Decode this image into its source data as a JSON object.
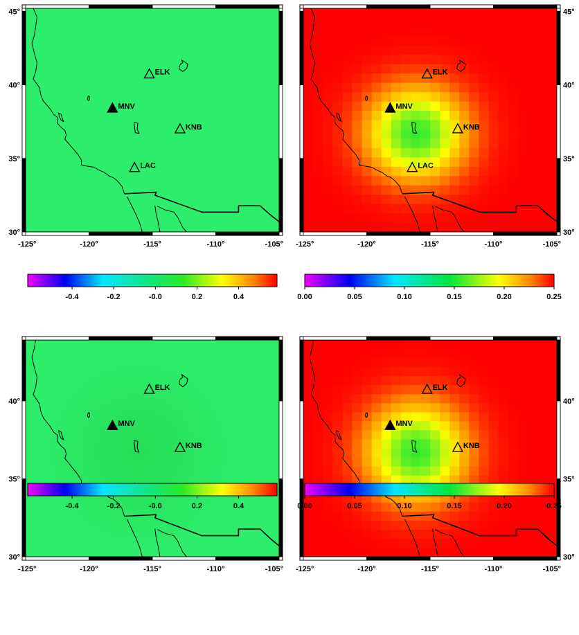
{
  "maps": [
    {
      "id": "top-left",
      "field": "uniform",
      "colorbar_index": 0,
      "lon_ticks": [
        "-125°",
        "-120°",
        "-115°",
        "-110°",
        "-105°"
      ],
      "left_lat_ticks": [
        "45°",
        "40°",
        "35°",
        "30°"
      ],
      "right_lat_ticks": []
    },
    {
      "id": "top-right",
      "field": "radial",
      "colorbar_index": 1,
      "lon_ticks": [
        "-125°",
        "-120°",
        "-115°",
        "-110°",
        "-105°"
      ],
      "left_lat_ticks": [],
      "right_lat_ticks": [
        "45°",
        "40°",
        "35°",
        "30°"
      ]
    },
    {
      "id": "bottom-left",
      "field": "soft",
      "colorbar_index": 2,
      "lon_ticks": [
        "-125°",
        "-120°",
        "-115°",
        "-110°",
        "-105°"
      ],
      "left_lat_ticks": [
        "40°",
        "35°",
        "30°"
      ],
      "right_lat_ticks": []
    },
    {
      "id": "bottom-right",
      "field": "radial",
      "colorbar_index": 3,
      "lon_ticks": [
        "-125°",
        "-120°",
        "-115°",
        "-110°",
        "-105°"
      ],
      "left_lat_ticks": [],
      "right_lat_ticks": [
        "40°",
        "35°",
        "30°"
      ]
    }
  ],
  "stations": [
    {
      "code": "MNV",
      "lon": -118.15,
      "lat": 38.43,
      "filled": true
    },
    {
      "code": "ELK",
      "lon": -115.24,
      "lat": 40.75,
      "filled": false
    },
    {
      "code": "KNB",
      "lon": -112.82,
      "lat": 37.02,
      "filled": false
    },
    {
      "code": "LAC",
      "lon": -116.41,
      "lat": 34.39,
      "filled": false
    }
  ],
  "colorbars": [
    {
      "id": "colorbar-top-left",
      "scale": "diverging",
      "labels": [
        "-0.4",
        "-0.2",
        "-0.0",
        "0.2",
        "0.4"
      ]
    },
    {
      "id": "colorbar-top-right",
      "scale": "sequential",
      "labels": [
        "0.00",
        "0.05",
        "0.10",
        "0.15",
        "0.20",
        "0.25"
      ]
    },
    {
      "id": "colorbar-bottom-left",
      "scale": "diverging",
      "labels": [
        "-0.4",
        "-0.2",
        "-0.0",
        "0.2",
        "0.4"
      ]
    },
    {
      "id": "colorbar-bottom-right",
      "scale": "sequential",
      "labels": [
        "0.00",
        "0.05",
        "0.10",
        "0.15",
        "0.20",
        "0.25"
      ]
    }
  ],
  "colors": {
    "field_green": "#2dee6a",
    "center_green": "#20d64a",
    "radial_red": "#fd3a12"
  }
}
